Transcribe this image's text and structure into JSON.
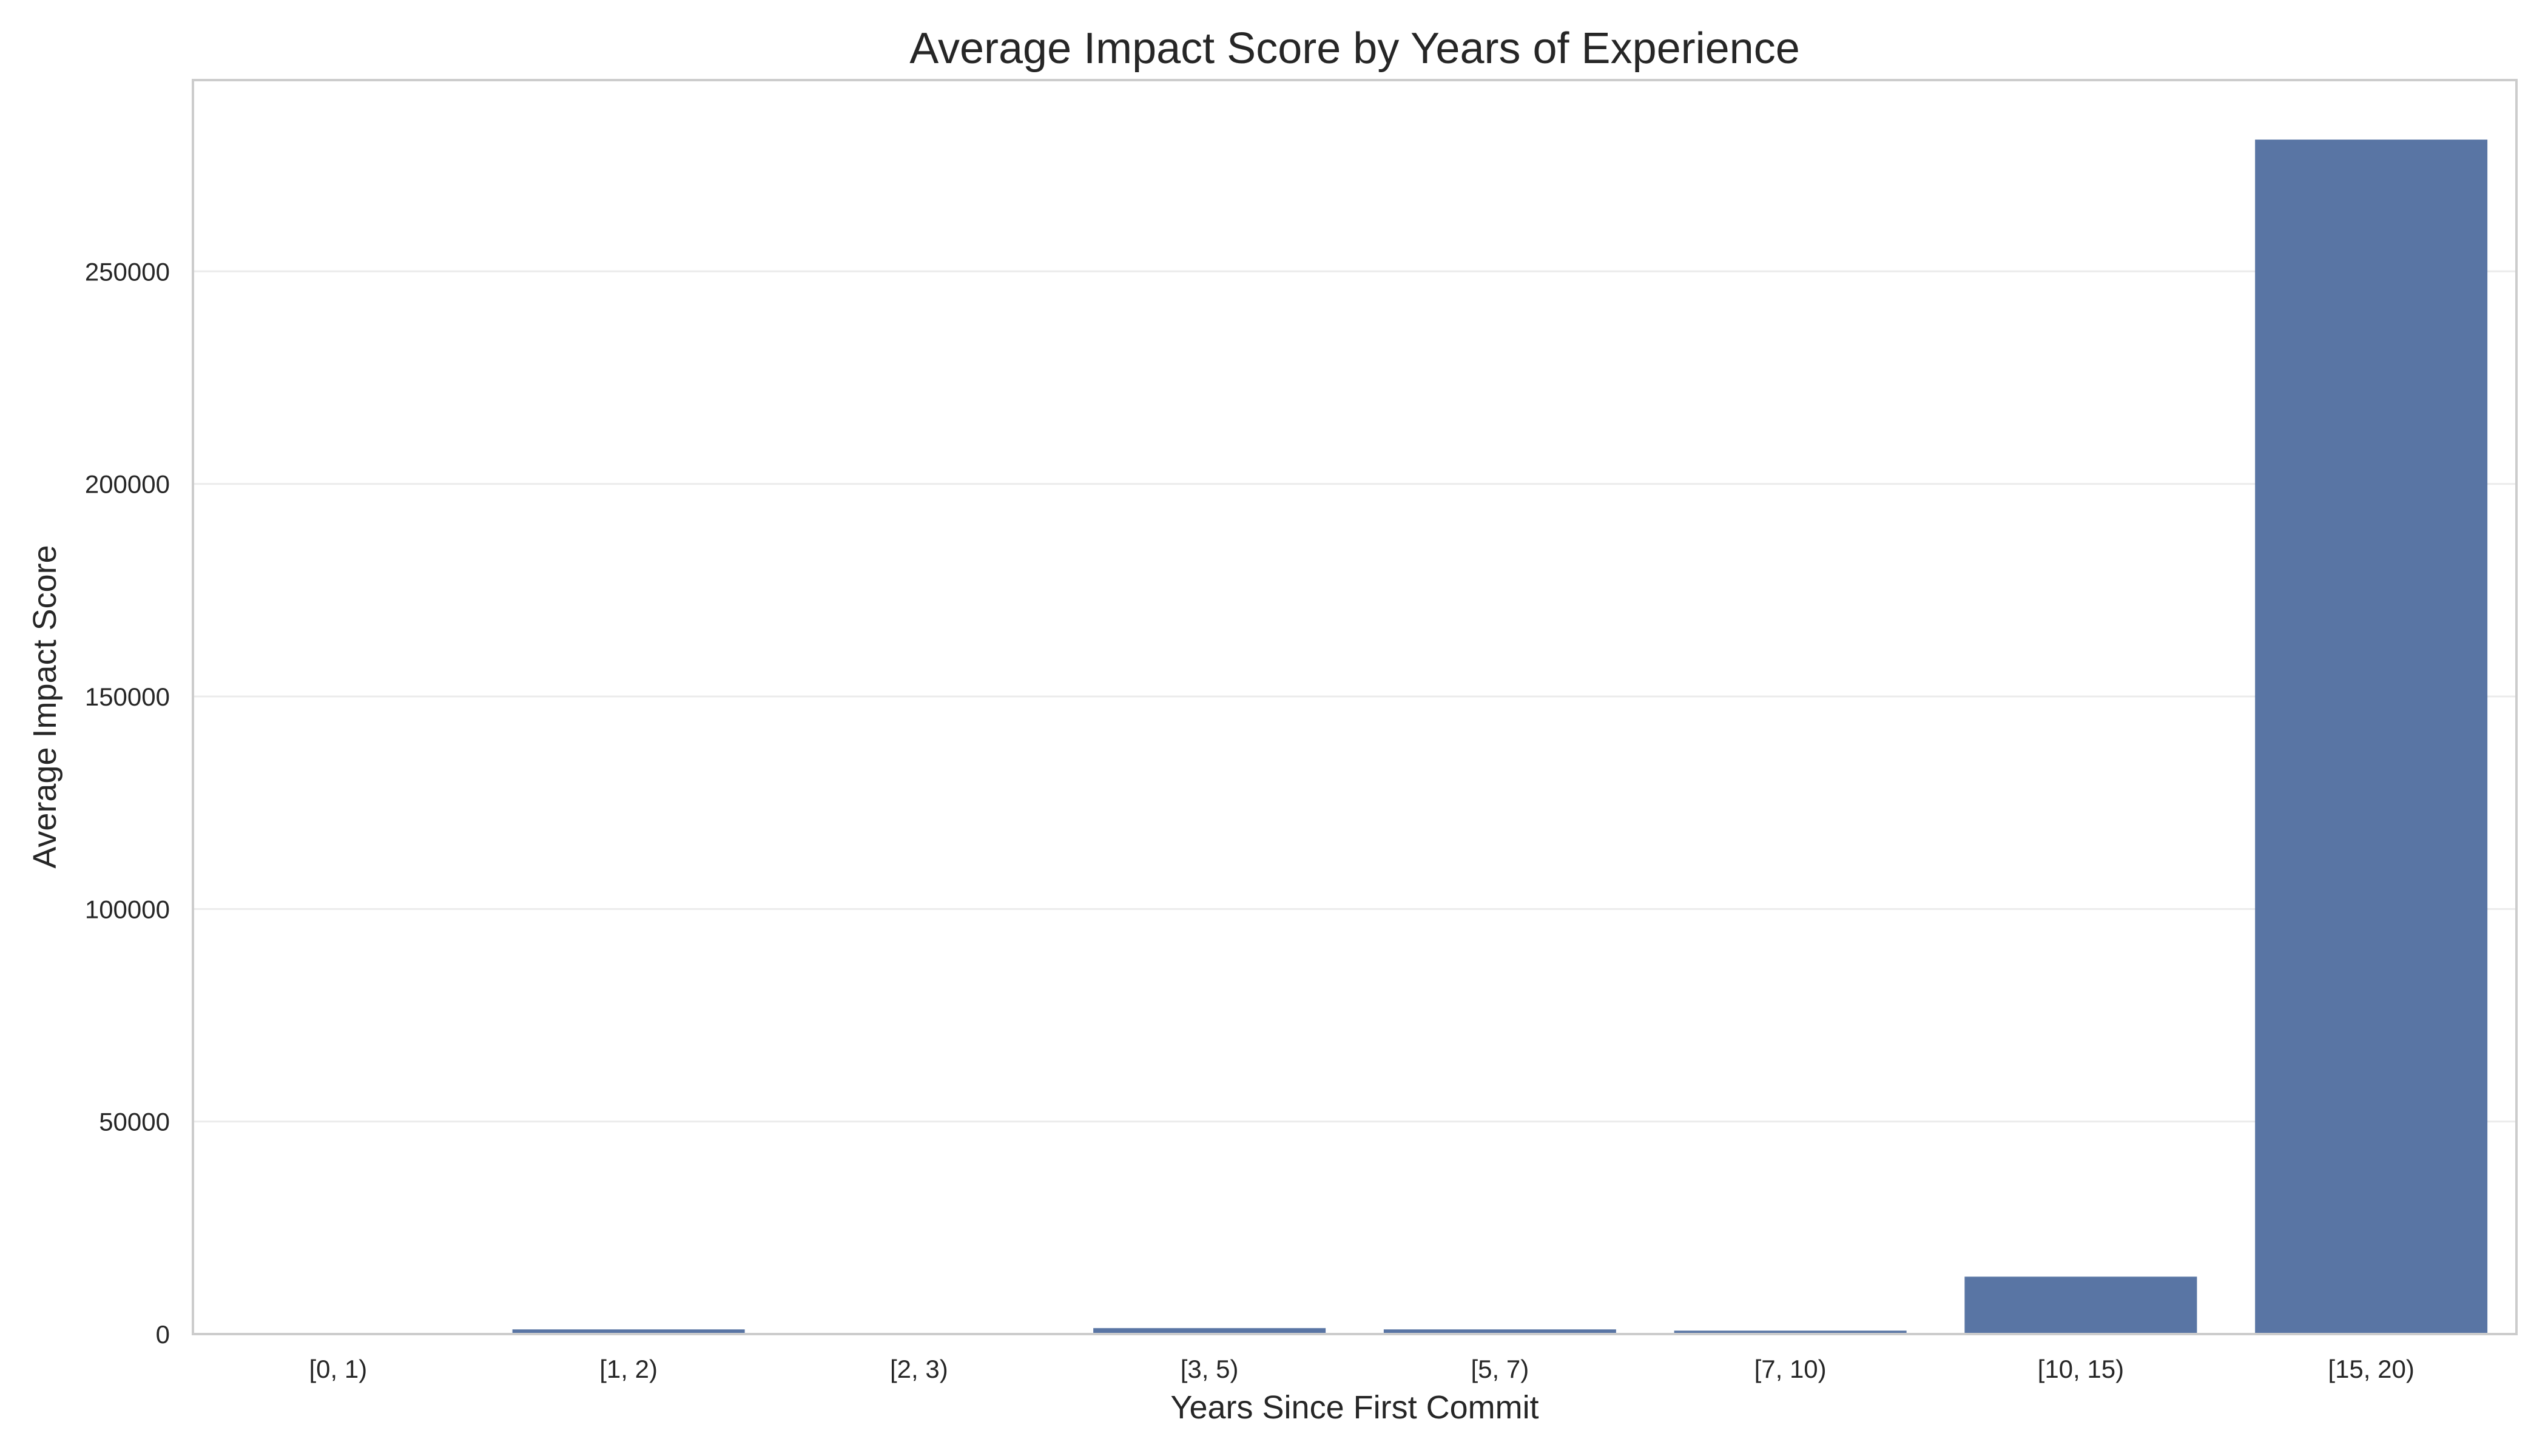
{
  "chart_data": {
    "type": "bar",
    "title": "Average Impact Score by Years of Experience",
    "xlabel": "Years Since First Commit",
    "ylabel": "Average Impact Score",
    "categories": [
      "[0, 1)",
      "[1, 2)",
      "[2, 3)",
      "[3, 5)",
      "[5, 7)",
      "[7, 10)",
      "[10, 15)",
      "[15, 20)"
    ],
    "values": [
      150,
      1100,
      200,
      1400,
      1100,
      800,
      13500,
      281000
    ],
    "ylim": [
      0,
      295000
    ],
    "yticks": [
      0,
      50000,
      100000,
      150000,
      200000,
      250000
    ],
    "ytick_labels": [
      "0",
      "50000",
      "100000",
      "150000",
      "200000",
      "250000"
    ],
    "bar_color": "#5975a4",
    "grid": true,
    "grid_axis": "y"
  }
}
